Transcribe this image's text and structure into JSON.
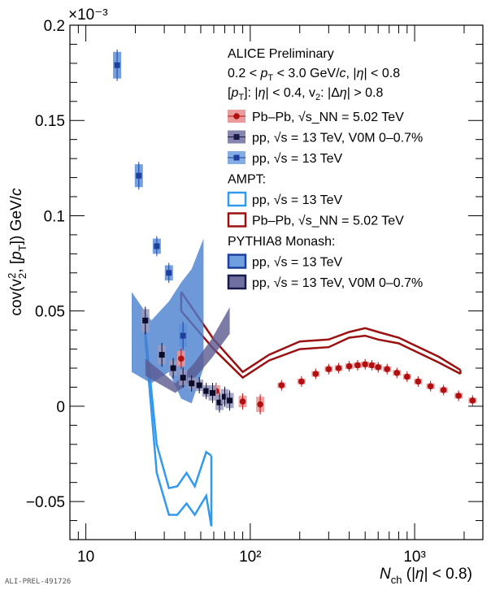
{
  "chart_data": {
    "type": "scatter",
    "x_scale": "log",
    "xlim": [
      8,
      2600
    ],
    "ylim": [
      -7e-05,
      0.0002
    ],
    "y_exponent_label": "×10⁻³",
    "x_ticks": [
      {
        "value": 10,
        "label": "10"
      },
      {
        "value": 100,
        "label": "10²"
      },
      {
        "value": 1000,
        "label": "10³"
      }
    ],
    "y_ticks": [
      {
        "value": 0.0002,
        "label": "0.2"
      },
      {
        "value": 0.00015,
        "label": "0.15"
      },
      {
        "value": 0.0001,
        "label": "0.1"
      },
      {
        "value": 5e-05,
        "label": "0.05"
      },
      {
        "value": 0,
        "label": "0"
      },
      {
        "value": -5e-05,
        "label": "−0.05"
      }
    ],
    "ylabel": "cov(v₂², [p_T]) GeV/c",
    "xlabel": "N_ch (|η| < 0.8)",
    "info_lines": [
      "ALICE Preliminary",
      "0.2 < p_T < 3.0 GeV/c, |η| < 0.8",
      "[p_T]: |η| < 0.4, v₂: |Δη| > 0.8"
    ],
    "legend": [
      {
        "label": "Pb–Pb, √s_NN = 5.02 TeV",
        "style": "marker-circle",
        "color": "#b01010",
        "fill": "#e88a8a"
      },
      {
        "label": "pp, √s = 13 TeV, V0M 0–0.7%",
        "style": "marker-square",
        "color": "#1a1a4a",
        "fill": "#7070a0"
      },
      {
        "label": "pp, √s = 13 TeV",
        "style": "marker-square",
        "color": "#1f3f9f",
        "fill": "#6f9fdf"
      },
      {
        "label": "AMPT:",
        "style": "header"
      },
      {
        "label": "pp, √s = 13 TeV",
        "style": "box",
        "color": "#3399ee",
        "fill": "none"
      },
      {
        "label": "Pb–Pb, √s_NN = 5.02 TeV",
        "style": "box",
        "color": "#9b1010",
        "fill": "none"
      },
      {
        "label": "PYTHIA8 Monash:",
        "style": "header"
      },
      {
        "label": "pp, √s = 13 TeV",
        "style": "box",
        "color": "#1f3f9f",
        "fill": "#6f9fdf"
      },
      {
        "label": "pp, √s = 13 TeV, V0M 0–0.7%",
        "style": "box",
        "color": "#1a1a4a",
        "fill": "#7070a0"
      }
    ],
    "series": [
      {
        "name": "Pb–Pb, √s_NN = 5.02 TeV",
        "marker": "circle",
        "color": "#b01010",
        "box_color": "#ec9494",
        "points": [
          {
            "x": 38,
            "y": 2.5e-05,
            "err": 4e-06
          },
          {
            "x": 62,
            "y": 8e-06,
            "err": 3e-06
          },
          {
            "x": 90,
            "y": 2.5e-06,
            "err": 3e-06
          },
          {
            "x": 115,
            "y": 1e-06,
            "err": 4e-06
          },
          {
            "x": 155,
            "y": 1.1e-05,
            "err": 1.5e-06
          },
          {
            "x": 205,
            "y": 1.3e-05,
            "err": 1.5e-06
          },
          {
            "x": 250,
            "y": 1.7e-05,
            "err": 1.5e-06
          },
          {
            "x": 300,
            "y": 1.95e-05,
            "err": 1.5e-06
          },
          {
            "x": 345,
            "y": 2e-05,
            "err": 1.5e-06
          },
          {
            "x": 400,
            "y": 2.1e-05,
            "err": 1.5e-06
          },
          {
            "x": 450,
            "y": 2.15e-05,
            "err": 1.5e-06
          },
          {
            "x": 500,
            "y": 2.2e-05,
            "err": 1.5e-06
          },
          {
            "x": 550,
            "y": 2.15e-05,
            "err": 1.5e-06
          },
          {
            "x": 600,
            "y": 2.05e-05,
            "err": 1.5e-06
          },
          {
            "x": 680,
            "y": 1.95e-05,
            "err": 1.5e-06
          },
          {
            "x": 780,
            "y": 1.75e-05,
            "err": 1.5e-06
          },
          {
            "x": 900,
            "y": 1.55e-05,
            "err": 1.5e-06
          },
          {
            "x": 1050,
            "y": 1.3e-05,
            "err": 1.5e-06
          },
          {
            "x": 1250,
            "y": 1.05e-05,
            "err": 1.5e-06
          },
          {
            "x": 1500,
            "y": 8.5e-06,
            "err": 1.5e-06
          },
          {
            "x": 1850,
            "y": 5.5e-06,
            "err": 1.5e-06
          },
          {
            "x": 2250,
            "y": 3e-06,
            "err": 1.5e-06
          }
        ]
      },
      {
        "name": "pp, √s = 13 TeV, V0M 0–0.7%",
        "marker": "square",
        "color": "#0b0b2a",
        "box_color": "#9a9ac0",
        "points": [
          {
            "x": 23,
            "y": 4.5e-05,
            "err": 6e-06
          },
          {
            "x": 29,
            "y": 2.7e-05,
            "err": 5e-06
          },
          {
            "x": 34,
            "y": 2e-05,
            "err": 4e-06
          },
          {
            "x": 39,
            "y": 1.5e-05,
            "err": 4e-06
          },
          {
            "x": 44,
            "y": 1.2e-05,
            "err": 3e-06
          },
          {
            "x": 49,
            "y": 1.1e-05,
            "err": 3e-06
          },
          {
            "x": 54,
            "y": 8e-06,
            "err": 3e-06
          },
          {
            "x": 59,
            "y": 7e-06,
            "err": 4e-06
          },
          {
            "x": 65,
            "y": 2e-06,
            "err": 4e-06
          },
          {
            "x": 70,
            "y": 5e-06,
            "err": 4e-06
          },
          {
            "x": 75,
            "y": 3e-06,
            "err": 4e-06
          }
        ]
      },
      {
        "name": "pp, √s = 13 TeV",
        "marker": "square",
        "color": "#1f3f9f",
        "box_color": "#5a8fd8",
        "points": [
          {
            "x": 15.5,
            "y": 0.000179,
            "err": 7e-06
          },
          {
            "x": 21,
            "y": 0.000121,
            "err": 6e-06
          },
          {
            "x": 27,
            "y": 8.4e-05,
            "err": 4e-06
          },
          {
            "x": 32,
            "y": 7e-05,
            "err": 4e-06
          },
          {
            "x": 39,
            "y": 3.7e-05,
            "err": 6e-06
          }
        ]
      }
    ],
    "model_bands": [
      {
        "name": "AMPT pp, √s = 13 TeV",
        "style": "line-band",
        "color": "#3399ee",
        "upper": [
          [
            23,
            4e-05
          ],
          [
            27,
            -2e-05
          ],
          [
            32,
            -4.3e-05
          ],
          [
            36,
            -4.2e-05
          ],
          [
            41,
            -3.5e-05
          ],
          [
            46,
            -4.2e-05
          ],
          [
            54,
            -2.4e-05
          ],
          [
            58,
            -2.6e-05
          ]
        ],
        "lower": [
          [
            23,
            3.5e-05
          ],
          [
            27,
            -3.5e-05
          ],
          [
            32,
            -5.7e-05
          ],
          [
            36,
            -5.7e-05
          ],
          [
            41,
            -5.1e-05
          ],
          [
            46,
            -5.7e-05
          ],
          [
            54,
            -4.7e-05
          ],
          [
            58,
            -6.3e-05
          ]
        ]
      },
      {
        "name": "AMPT Pb–Pb, √s_NN = 5.02 TeV",
        "style": "line-band",
        "color": "#9b1010",
        "upper": [
          [
            38,
            6e-05
          ],
          [
            60,
            3.5e-05
          ],
          [
            90,
            1.8e-05
          ],
          [
            130,
            2.7e-05
          ],
          [
            200,
            3.4e-05
          ],
          [
            300,
            3.5e-05
          ],
          [
            400,
            3.9e-05
          ],
          [
            500,
            4.1e-05
          ],
          [
            600,
            3.9e-05
          ],
          [
            800,
            3.6e-05
          ],
          [
            1000,
            3.2e-05
          ],
          [
            1400,
            2.6e-05
          ],
          [
            1900,
            1.9e-05
          ]
        ],
        "lower": [
          [
            38,
            5e-05
          ],
          [
            60,
            3e-05
          ],
          [
            90,
            1.5e-05
          ],
          [
            130,
            2.4e-05
          ],
          [
            200,
            3e-05
          ],
          [
            300,
            3.1e-05
          ],
          [
            400,
            3.6e-05
          ],
          [
            500,
            3.7e-05
          ],
          [
            600,
            3.5e-05
          ],
          [
            800,
            3.3e-05
          ],
          [
            1000,
            2.9e-05
          ],
          [
            1400,
            2.3e-05
          ],
          [
            1900,
            1.7e-05
          ]
        ]
      },
      {
        "name": "PYTHIA8 Monash pp, √s = 13 TeV",
        "style": "fill-band",
        "color": "#4a80cf",
        "upper": [
          [
            19,
            6e-05
          ],
          [
            25,
            4.5e-05
          ],
          [
            32,
            5.5e-05
          ],
          [
            38,
            6.5e-05
          ],
          [
            44,
            7.2e-05
          ],
          [
            52,
            8.8e-05
          ]
        ],
        "lower": [
          [
            19,
            1.8e-05
          ],
          [
            25,
            1.2e-05
          ],
          [
            32,
            1.8e-05
          ],
          [
            38,
            4e-06
          ],
          [
            44,
            1.5e-06
          ],
          [
            52,
            2e-05
          ]
        ]
      },
      {
        "name": "PYTHIA8 Monash pp, √s = 13 TeV, V0M 0–0.7%",
        "style": "fill-band",
        "color": "#5a5a90",
        "upper": [
          [
            23,
            2.5e-05
          ],
          [
            29,
            1.8e-05
          ],
          [
            35,
            1.2e-05
          ],
          [
            45,
            2.2e-05
          ],
          [
            58,
            3.5e-05
          ],
          [
            75,
            5.2e-05
          ]
        ],
        "lower": [
          [
            23,
            1.6e-05
          ],
          [
            29,
            1.1e-05
          ],
          [
            35,
            7e-06
          ],
          [
            45,
            1.4e-05
          ],
          [
            58,
            2.5e-05
          ],
          [
            75,
            3.8e-05
          ]
        ]
      }
    ],
    "grid": false,
    "legend_position": "top-right"
  },
  "footer": {
    "label": "ALI-PREL-491726"
  }
}
